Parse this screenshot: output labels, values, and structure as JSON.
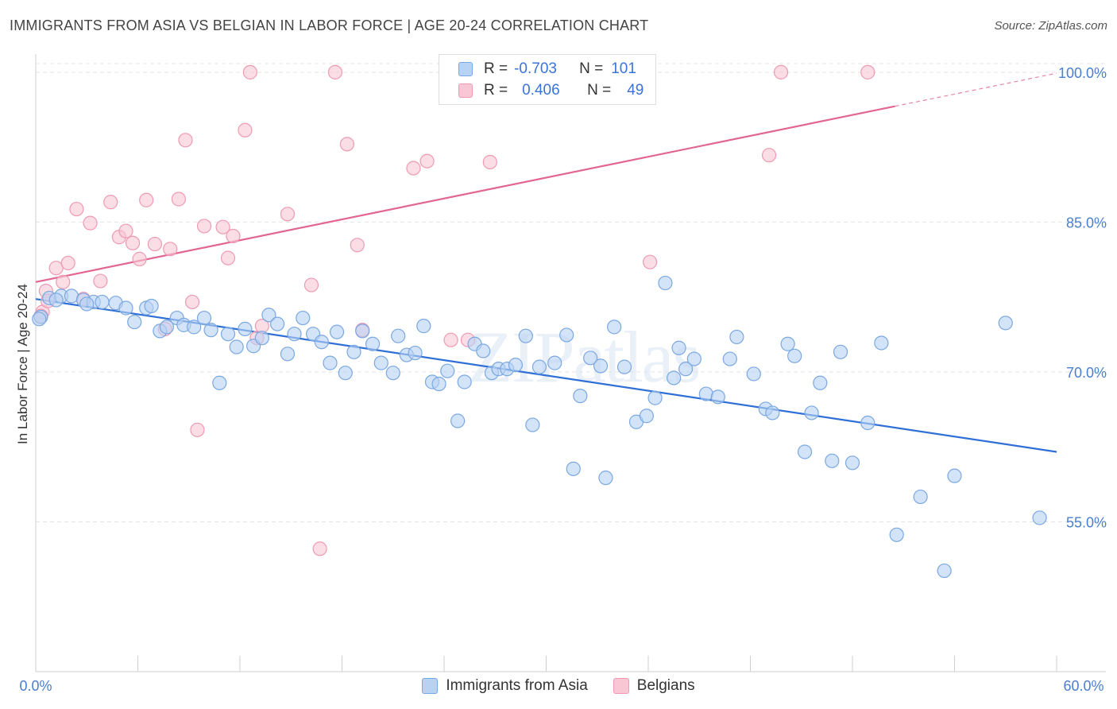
{
  "header": {
    "title": "IMMIGRANTS FROM ASIA VS BELGIAN IN LABOR FORCE | AGE 20-24 CORRELATION CHART",
    "source": "Source: ZipAtlas.com"
  },
  "legend": {
    "rows": [
      {
        "r_label": "R =",
        "r_value": "-0.703",
        "n_label": "N =",
        "n_value": "101"
      },
      {
        "r_label": "R =",
        "r_value": "0.406",
        "n_label": "N =",
        "n_value": "49"
      }
    ]
  },
  "bottom_legend": {
    "items": [
      {
        "label": "Immigrants from Asia"
      },
      {
        "label": "Belgians"
      }
    ]
  },
  "colors": {
    "blue_fill": "#b8d2f3",
    "blue_stroke": "#7aa8e2",
    "blue_line": "#2f6fd6",
    "pink_fill": "#f8c6d4",
    "pink_stroke": "#ee9ab3",
    "pink_line": "#e2668f",
    "tick_text": "#4a7fcf",
    "grid": "#e4e4e4"
  },
  "chart_data": {
    "type": "scatter",
    "ylabel": "In Labor Force | Age 20-24",
    "xlabel": "",
    "xlim": [
      0,
      60
    ],
    "ylim": [
      40,
      101.5
    ],
    "x_tick_labels": [
      "0.0%",
      "60.0%"
    ],
    "y_ticks": [
      55,
      70,
      85,
      100
    ],
    "y_tick_labels": [
      "55.0%",
      "70.0%",
      "85.0%",
      "100.0%"
    ],
    "watermark": "ZIPatlas",
    "series": [
      {
        "name": "Immigrants from Asia",
        "trend": {
          "x": [
            0,
            60
          ],
          "y": [
            77.3,
            62.0
          ],
          "solid_to": 60
        },
        "points": [
          [
            0.3,
            75.5
          ],
          [
            0.8,
            77.4
          ],
          [
            1.5,
            77.6
          ],
          [
            2.1,
            77.6
          ],
          [
            2.8,
            77.2
          ],
          [
            3.4,
            77.0
          ],
          [
            3.9,
            77.0
          ],
          [
            4.7,
            76.9
          ],
          [
            5.3,
            76.4
          ],
          [
            5.8,
            75.0
          ],
          [
            6.5,
            76.4
          ],
          [
            6.8,
            76.6
          ],
          [
            7.3,
            74.1
          ],
          [
            7.7,
            74.5
          ],
          [
            8.3,
            75.4
          ],
          [
            8.7,
            74.7
          ],
          [
            9.3,
            74.5
          ],
          [
            9.9,
            75.4
          ],
          [
            10.3,
            74.2
          ],
          [
            10.8,
            68.9
          ],
          [
            11.3,
            73.8
          ],
          [
            11.8,
            72.5
          ],
          [
            12.3,
            74.3
          ],
          [
            12.8,
            72.6
          ],
          [
            13.3,
            73.4
          ],
          [
            13.7,
            75.7
          ],
          [
            14.2,
            74.8
          ],
          [
            14.8,
            71.8
          ],
          [
            15.2,
            73.8
          ],
          [
            15.7,
            75.4
          ],
          [
            16.3,
            73.8
          ],
          [
            16.8,
            73.0
          ],
          [
            17.3,
            70.9
          ],
          [
            17.7,
            74.0
          ],
          [
            18.2,
            69.9
          ],
          [
            18.7,
            72.0
          ],
          [
            19.2,
            74.1
          ],
          [
            19.8,
            72.8
          ],
          [
            20.3,
            70.9
          ],
          [
            21.0,
            69.9
          ],
          [
            21.3,
            73.6
          ],
          [
            21.8,
            71.7
          ],
          [
            22.3,
            71.9
          ],
          [
            22.8,
            74.6
          ],
          [
            23.3,
            69.0
          ],
          [
            23.7,
            68.8
          ],
          [
            24.2,
            70.1
          ],
          [
            24.8,
            65.1
          ],
          [
            25.2,
            69.0
          ],
          [
            25.8,
            72.8
          ],
          [
            26.3,
            72.1
          ],
          [
            26.8,
            69.9
          ],
          [
            27.2,
            70.3
          ],
          [
            27.7,
            70.3
          ],
          [
            28.2,
            70.7
          ],
          [
            28.8,
            73.6
          ],
          [
            29.2,
            64.7
          ],
          [
            29.6,
            70.5
          ],
          [
            30.5,
            70.9
          ],
          [
            31.2,
            73.7
          ],
          [
            31.6,
            60.3
          ],
          [
            32.0,
            67.6
          ],
          [
            32.6,
            71.4
          ],
          [
            33.2,
            70.6
          ],
          [
            33.5,
            59.4
          ],
          [
            34.0,
            74.5
          ],
          [
            34.6,
            70.5
          ],
          [
            35.3,
            65.0
          ],
          [
            35.9,
            65.6
          ],
          [
            36.4,
            67.4
          ],
          [
            37.0,
            78.9
          ],
          [
            37.5,
            69.4
          ],
          [
            37.8,
            72.4
          ],
          [
            38.2,
            70.3
          ],
          [
            38.7,
            71.3
          ],
          [
            39.4,
            67.8
          ],
          [
            40.1,
            67.5
          ],
          [
            40.8,
            71.3
          ],
          [
            41.2,
            73.5
          ],
          [
            42.2,
            69.8
          ],
          [
            42.9,
            66.3
          ],
          [
            43.3,
            65.9
          ],
          [
            44.2,
            72.8
          ],
          [
            44.6,
            71.6
          ],
          [
            45.2,
            62.0
          ],
          [
            45.6,
            65.9
          ],
          [
            46.1,
            68.9
          ],
          [
            46.8,
            61.1
          ],
          [
            47.3,
            72.0
          ],
          [
            48.0,
            60.9
          ],
          [
            48.9,
            64.9
          ],
          [
            49.7,
            72.9
          ],
          [
            50.6,
            53.7
          ],
          [
            52.0,
            57.5
          ],
          [
            53.4,
            50.1
          ],
          [
            54.0,
            59.6
          ],
          [
            57.0,
            74.9
          ],
          [
            59.0,
            55.4
          ],
          [
            0.2,
            75.3
          ],
          [
            1.2,
            77.2
          ],
          [
            3.0,
            76.8
          ]
        ]
      },
      {
        "name": "Belgians",
        "trend": {
          "x": [
            0,
            60
          ],
          "y": [
            79.0,
            99.9
          ],
          "solid_to": 50.5
        },
        "points": [
          [
            0.4,
            76.0
          ],
          [
            0.6,
            78.1
          ],
          [
            0.7,
            77.1
          ],
          [
            1.2,
            80.4
          ],
          [
            1.6,
            79.0
          ],
          [
            1.9,
            80.9
          ],
          [
            2.4,
            86.3
          ],
          [
            2.8,
            77.3
          ],
          [
            3.2,
            84.9
          ],
          [
            3.8,
            79.1
          ],
          [
            4.4,
            87.0
          ],
          [
            4.9,
            83.5
          ],
          [
            5.3,
            84.1
          ],
          [
            5.7,
            82.9
          ],
          [
            6.1,
            81.3
          ],
          [
            6.5,
            87.2
          ],
          [
            7.0,
            82.8
          ],
          [
            7.6,
            74.3
          ],
          [
            7.9,
            82.3
          ],
          [
            8.4,
            87.3
          ],
          [
            8.8,
            93.2
          ],
          [
            9.2,
            77.0
          ],
          [
            9.5,
            64.2
          ],
          [
            9.9,
            84.6
          ],
          [
            11.0,
            84.5
          ],
          [
            11.6,
            83.6
          ],
          [
            11.3,
            81.4
          ],
          [
            12.3,
            94.2
          ],
          [
            12.6,
            100.0
          ],
          [
            13.0,
            73.4
          ],
          [
            13.3,
            74.6
          ],
          [
            14.8,
            85.8
          ],
          [
            16.2,
            78.7
          ],
          [
            16.7,
            52.3
          ],
          [
            17.6,
            100.0
          ],
          [
            18.3,
            92.8
          ],
          [
            18.9,
            82.7
          ],
          [
            19.2,
            74.2
          ],
          [
            22.2,
            90.4
          ],
          [
            23.0,
            91.1
          ],
          [
            24.4,
            73.2
          ],
          [
            25.4,
            73.2
          ],
          [
            26.7,
            91.0
          ],
          [
            28.3,
            100.0
          ],
          [
            36.1,
            81.0
          ],
          [
            43.1,
            91.7
          ],
          [
            43.8,
            100.0
          ],
          [
            48.9,
            100.0
          ],
          [
            0.3,
            75.6
          ]
        ]
      }
    ]
  }
}
